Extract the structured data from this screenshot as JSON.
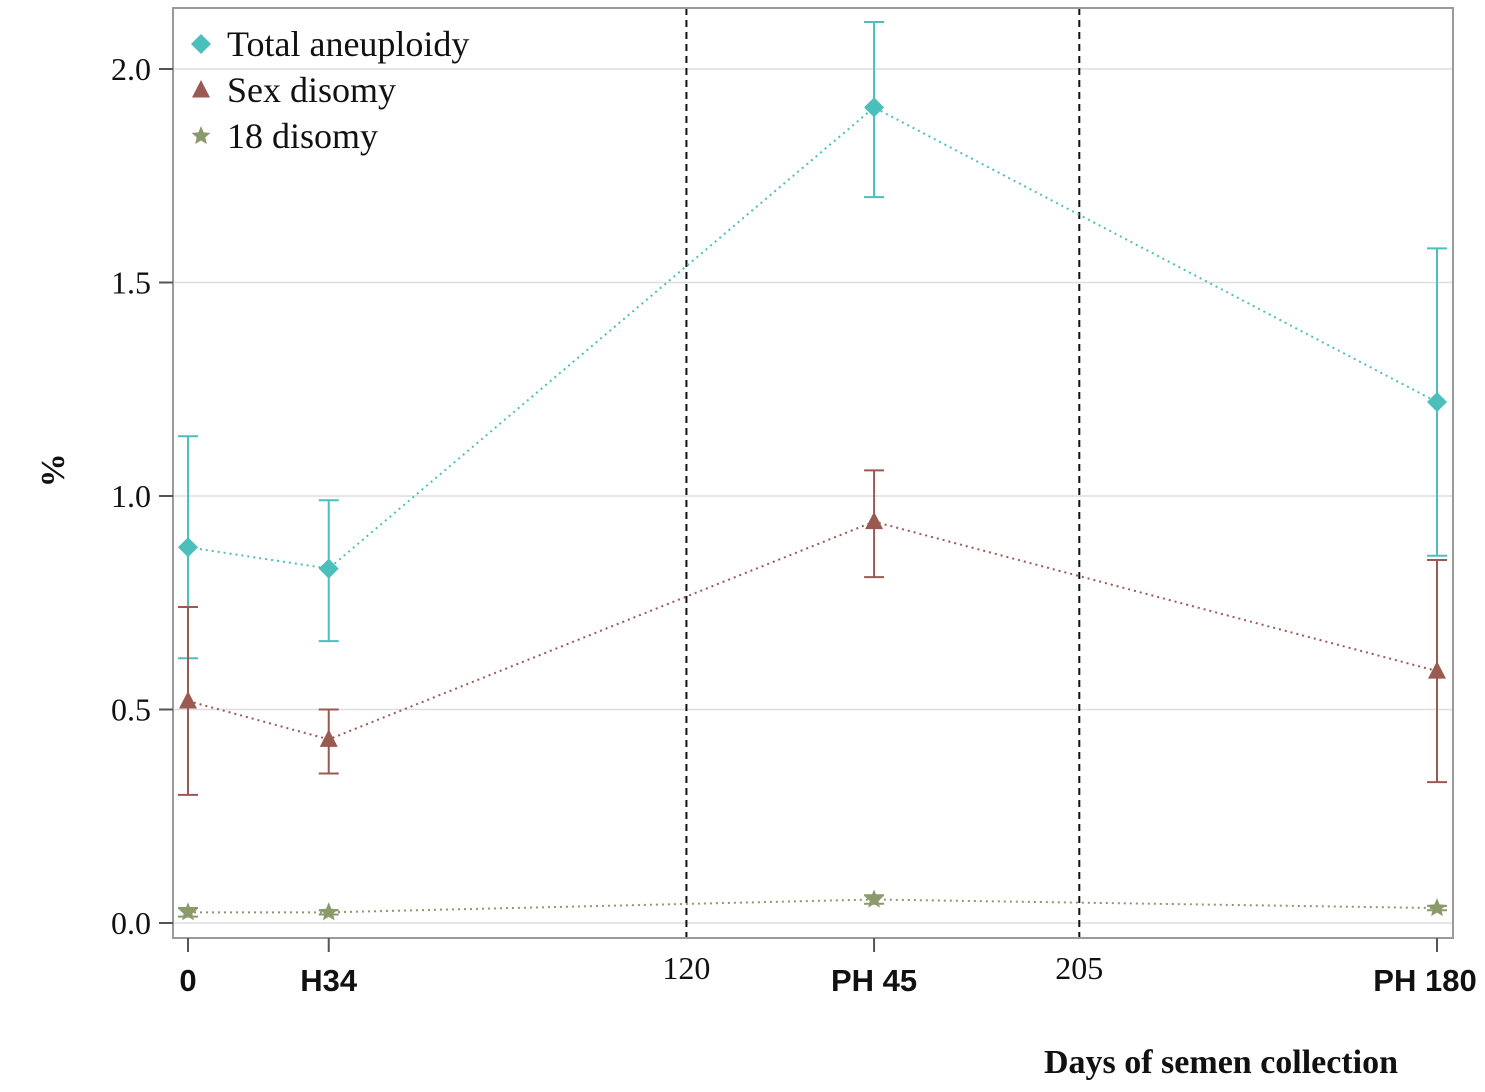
{
  "chart_data": {
    "type": "line",
    "xlabel": "Days of semen collection",
    "ylabel": "%",
    "ylim": [
      0,
      2.2
    ],
    "yticks": [
      {
        "value": 0.0,
        "label": "0.0"
      },
      {
        "value": 0.5,
        "label": "0.5"
      },
      {
        "value": 1.0,
        "label": "1.0"
      },
      {
        "value": 1.5,
        "label": "1.5"
      },
      {
        "value": 2.0,
        "label": "2.0"
      }
    ],
    "xlim": [
      -2,
      217
    ],
    "x_positions": [
      0,
      24,
      117,
      213
    ],
    "categories": [
      "0",
      "H34",
      "PH 45",
      "PH 180"
    ],
    "reference_lines": [
      {
        "x": 85,
        "label": "120"
      },
      {
        "x": 152,
        "label": "205"
      }
    ],
    "grid": "horizontal",
    "legend_position": "top-left",
    "series": [
      {
        "name": "Total aneuploidy",
        "marker": "diamond",
        "color": "#4bbfbc",
        "values": [
          0.88,
          0.83,
          1.91,
          1.22
        ],
        "error_low": [
          0.62,
          0.66,
          1.7,
          0.86
        ],
        "error_high": [
          1.14,
          0.99,
          2.11,
          1.58
        ]
      },
      {
        "name": "Sex disomy",
        "marker": "triangle",
        "color": "#9a5a52",
        "values": [
          0.52,
          0.43,
          0.94,
          0.59
        ],
        "error_low": [
          0.3,
          0.35,
          0.81,
          0.33
        ],
        "error_high": [
          0.74,
          0.5,
          1.06,
          0.85
        ]
      },
      {
        "name": "18 disomy",
        "marker": "star",
        "color": "#8a9a6a",
        "values": [
          0.025,
          0.025,
          0.055,
          0.035
        ],
        "error_low": [
          0.015,
          0.02,
          0.045,
          0.03
        ],
        "error_high": [
          0.035,
          0.03,
          0.065,
          0.04
        ]
      }
    ]
  }
}
